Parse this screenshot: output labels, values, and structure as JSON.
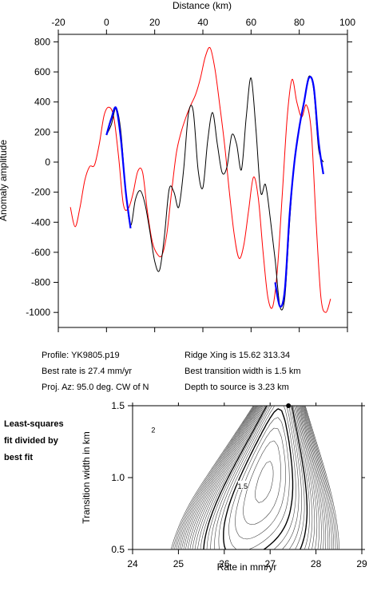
{
  "chart_data": [
    {
      "type": "line",
      "xlabel": "Distance (km)",
      "ylabel": "Anomaly amplitude",
      "xlim": [
        -20,
        100
      ],
      "ylim": [
        -1100,
        850
      ],
      "x_ticks": [
        -20,
        0,
        20,
        40,
        60,
        80,
        100
      ],
      "y_ticks": [
        800,
        600,
        400,
        200,
        0,
        -200,
        -400,
        -600,
        -800,
        -1000
      ],
      "grid": false,
      "series": [
        {
          "color": "#ff0000",
          "x": [
            -15,
            -13,
            -11,
            -9,
            -7,
            -5,
            -3,
            -1,
            1,
            3,
            5,
            7,
            9,
            11,
            13,
            15,
            17,
            19,
            21,
            23,
            25,
            27,
            29,
            31,
            33,
            35,
            37,
            39,
            41,
            43,
            45,
            47,
            49,
            51,
            53,
            55,
            57,
            59,
            61,
            63,
            65,
            67,
            69,
            71,
            73,
            75,
            77,
            79,
            81,
            83,
            85,
            87,
            89,
            91,
            93
          ],
          "y": [
            -300,
            -430,
            -300,
            -120,
            -30,
            -20,
            120,
            310,
            365,
            300,
            40,
            -280,
            -310,
            -210,
            -60,
            -70,
            -330,
            -530,
            -610,
            -620,
            -480,
            -200,
            60,
            200,
            300,
            380,
            450,
            560,
            700,
            760,
            620,
            380,
            120,
            -200,
            -480,
            -640,
            -550,
            -320,
            -100,
            -240,
            -600,
            -900,
            -960,
            -700,
            -200,
            300,
            550,
            400,
            300,
            380,
            200,
            -400,
            -900,
            -1000,
            -910
          ]
        },
        {
          "color": "#000000",
          "x": [
            0,
            2,
            4,
            6,
            8,
            10,
            12,
            14,
            16,
            18,
            20,
            22,
            24,
            26,
            28,
            30,
            32,
            34,
            36,
            38,
            40,
            42,
            44,
            46,
            48,
            50,
            52,
            54,
            56,
            58,
            60,
            62,
            64,
            66,
            68,
            70,
            72,
            74,
            76,
            78,
            80,
            82,
            84,
            86,
            88,
            90
          ],
          "y": [
            180,
            250,
            360,
            200,
            -200,
            -420,
            -250,
            -190,
            -280,
            -460,
            -660,
            -720,
            -500,
            -180,
            -200,
            -300,
            -50,
            320,
            340,
            -50,
            -170,
            140,
            330,
            120,
            -70,
            -30,
            180,
            120,
            -50,
            300,
            560,
            220,
            -200,
            -150,
            -380,
            -650,
            -960,
            -900,
            -400,
            10,
            230,
            400,
            570,
            480,
            90,
            0
          ]
        },
        {
          "color": "#0000ff",
          "x": [
            0,
            2,
            4,
            6,
            8,
            10
          ],
          "y": [
            180,
            290,
            360,
            150,
            -200,
            -440
          ]
        },
        {
          "color": "#0000ff",
          "x": [
            70,
            72,
            74,
            76,
            78,
            80,
            82,
            84,
            86,
            88,
            90
          ],
          "y": [
            -800,
            -960,
            -850,
            -350,
            0,
            230,
            400,
            560,
            500,
            140,
            -80
          ]
        }
      ]
    },
    {
      "type": "contour",
      "xlabel": "Rate in mm/yr",
      "ylabel": "Transition width in km",
      "xlim": [
        24,
        29
      ],
      "ylim": [
        0.5,
        1.5
      ],
      "x_ticks": [
        24,
        25,
        26,
        27,
        28,
        29
      ],
      "y_ticks": [
        0.5,
        1.0,
        1.5
      ],
      "contour_labels": [
        {
          "text": "2",
          "x": 24.45,
          "y": 1.33
        },
        {
          "text": "1.5",
          "x": 26.4,
          "y": 0.94
        }
      ],
      "best_fit_point": {
        "x": 27.4,
        "y": 1.5
      }
    }
  ],
  "info": {
    "profile": "Profile: YK9805.p19",
    "best_rate": "Best rate is 27.4 mm/yr",
    "proj_az": "Proj. Az: 95.0 deg. CW of N",
    "ridge_xing": "Ridge Xing is 15.62 313.34",
    "best_transition": "Best transition width is 1.5 km",
    "depth": "Depth to source is   3.23 km"
  },
  "side_note": [
    "Least-squares",
    "fit divided by",
    "best fit"
  ]
}
